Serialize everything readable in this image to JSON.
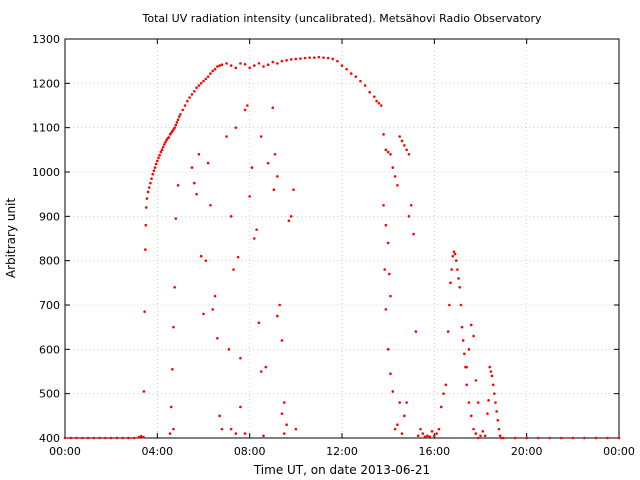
{
  "chart_data": {
    "type": "scatter",
    "title": "Total UV radiation intensity (uncalibrated). Metsähovi Radio Observatory",
    "xlabel": "Time UT, on date 2013-06-21",
    "ylabel": "Arbitrary unit",
    "xlim": [
      0,
      24
    ],
    "ylim": [
      400,
      1300
    ],
    "grid": true,
    "marker_color": "#ff0000",
    "x_ticks": [
      {
        "value": 0,
        "label": "00:00"
      },
      {
        "value": 4,
        "label": "04:00"
      },
      {
        "value": 8,
        "label": "08:00"
      },
      {
        "value": 12,
        "label": "12:00"
      },
      {
        "value": 16,
        "label": "16:00"
      },
      {
        "value": 20,
        "label": "20:00"
      },
      {
        "value": 24,
        "label": "00:00"
      }
    ],
    "y_ticks": [
      {
        "value": 400,
        "label": "400"
      },
      {
        "value": 500,
        "label": "500"
      },
      {
        "value": 600,
        "label": "600"
      },
      {
        "value": 700,
        "label": "700"
      },
      {
        "value": 800,
        "label": "800"
      },
      {
        "value": 900,
        "label": "900"
      },
      {
        "value": 1000,
        "label": "1000"
      },
      {
        "value": 1100,
        "label": "1100"
      },
      {
        "value": 1200,
        "label": "1200"
      },
      {
        "value": 1300,
        "label": "1300"
      }
    ],
    "series": [
      {
        "points": [
          [
            0.0,
            400
          ],
          [
            0.25,
            400
          ],
          [
            0.5,
            400
          ],
          [
            0.75,
            400
          ],
          [
            1.0,
            400
          ],
          [
            1.25,
            400
          ],
          [
            1.5,
            400
          ],
          [
            1.75,
            400
          ],
          [
            2.0,
            400
          ],
          [
            2.25,
            400
          ],
          [
            2.5,
            400
          ],
          [
            2.75,
            400
          ],
          [
            3.0,
            400
          ],
          [
            3.2,
            402
          ],
          [
            3.3,
            404
          ],
          [
            3.4,
            402
          ],
          [
            3.42,
            505
          ],
          [
            3.45,
            685
          ],
          [
            3.48,
            825
          ],
          [
            3.5,
            880
          ],
          [
            3.52,
            920
          ],
          [
            3.55,
            940
          ],
          [
            3.6,
            955
          ],
          [
            3.65,
            965
          ],
          [
            3.7,
            975
          ],
          [
            3.75,
            985
          ],
          [
            3.8,
            995
          ],
          [
            3.85,
            1003
          ],
          [
            3.9,
            1010
          ],
          [
            3.95,
            1018
          ],
          [
            4.0,
            1025
          ],
          [
            4.05,
            1032
          ],
          [
            4.1,
            1038
          ],
          [
            4.15,
            1045
          ],
          [
            4.2,
            1050
          ],
          [
            4.25,
            1056
          ],
          [
            4.3,
            1062
          ],
          [
            4.35,
            1067
          ],
          [
            4.4,
            1072
          ],
          [
            4.45,
            1076
          ],
          [
            4.5,
            1078
          ],
          [
            4.55,
            1085
          ],
          [
            4.6,
            1088
          ],
          [
            4.65,
            1092
          ],
          [
            4.7,
            1096
          ],
          [
            4.75,
            1100
          ],
          [
            4.8,
            1106
          ],
          [
            4.85,
            1112
          ],
          [
            4.9,
            1118
          ],
          [
            4.95,
            1125
          ],
          [
            5.0,
            1130
          ],
          [
            5.1,
            1140
          ],
          [
            5.2,
            1150
          ],
          [
            5.3,
            1160
          ],
          [
            5.4,
            1168
          ],
          [
            5.5,
            1175
          ],
          [
            5.6,
            1182
          ],
          [
            5.7,
            1190
          ],
          [
            5.8,
            1195
          ],
          [
            5.9,
            1200
          ],
          [
            6.0,
            1205
          ],
          [
            6.1,
            1210
          ],
          [
            6.2,
            1215
          ],
          [
            6.3,
            1222
          ],
          [
            6.4,
            1228
          ],
          [
            6.5,
            1232
          ],
          [
            6.6,
            1238
          ],
          [
            6.7,
            1240
          ],
          [
            6.8,
            1242
          ],
          [
            7.0,
            1245
          ],
          [
            7.2,
            1240
          ],
          [
            7.4,
            1235
          ],
          [
            7.6,
            1245
          ],
          [
            7.8,
            1243
          ],
          [
            8.0,
            1235
          ],
          [
            8.2,
            1240
          ],
          [
            8.4,
            1245
          ],
          [
            8.6,
            1238
          ],
          [
            8.8,
            1242
          ],
          [
            9.0,
            1248
          ],
          [
            9.2,
            1245
          ],
          [
            9.4,
            1250
          ],
          [
            9.6,
            1252
          ],
          [
            9.8,
            1254
          ],
          [
            10.0,
            1255
          ],
          [
            10.2,
            1256
          ],
          [
            10.4,
            1257
          ],
          [
            10.6,
            1258
          ],
          [
            10.8,
            1258
          ],
          [
            11.0,
            1259
          ],
          [
            11.2,
            1258
          ],
          [
            11.4,
            1257
          ],
          [
            11.6,
            1255
          ],
          [
            11.8,
            1250
          ],
          [
            12.0,
            1240
          ],
          [
            12.2,
            1232
          ],
          [
            12.4,
            1222
          ],
          [
            12.6,
            1215
          ],
          [
            12.8,
            1205
          ],
          [
            13.0,
            1195
          ],
          [
            13.2,
            1180
          ],
          [
            13.4,
            1170
          ],
          [
            13.5,
            1160
          ],
          [
            13.6,
            1155
          ],
          [
            4.7,
            650
          ],
          [
            4.75,
            740
          ],
          [
            4.8,
            895
          ],
          [
            4.9,
            970
          ],
          [
            4.55,
            410
          ],
          [
            4.6,
            470
          ],
          [
            4.65,
            555
          ],
          [
            4.7,
            420
          ],
          [
            5.5,
            1010
          ],
          [
            5.6,
            975
          ],
          [
            5.7,
            950
          ],
          [
            5.8,
            1040
          ],
          [
            5.9,
            810
          ],
          [
            6.0,
            680
          ],
          [
            6.1,
            800
          ],
          [
            6.2,
            1020
          ],
          [
            6.3,
            925
          ],
          [
            6.4,
            690
          ],
          [
            6.5,
            720
          ],
          [
            6.6,
            625
          ],
          [
            6.7,
            450
          ],
          [
            6.8,
            420
          ],
          [
            7.0,
            1080
          ],
          [
            7.1,
            600
          ],
          [
            7.2,
            420
          ],
          [
            7.4,
            410
          ],
          [
            7.5,
            808
          ],
          [
            7.6,
            470
          ],
          [
            7.8,
            1140
          ],
          [
            7.9,
            1150
          ],
          [
            8.0,
            945
          ],
          [
            8.2,
            850
          ],
          [
            8.3,
            870
          ],
          [
            8.4,
            660
          ],
          [
            8.5,
            550
          ],
          [
            8.6,
            405
          ],
          [
            8.7,
            560
          ],
          [
            9.0,
            1145
          ],
          [
            9.1,
            1040
          ],
          [
            9.2,
            990
          ],
          [
            9.3,
            700
          ],
          [
            9.4,
            620
          ],
          [
            9.5,
            480
          ],
          [
            9.6,
            430
          ],
          [
            9.7,
            890
          ],
          [
            9.8,
            900
          ],
          [
            9.9,
            960
          ],
          [
            10.0,
            420
          ],
          [
            7.2,
            900
          ],
          [
            7.3,
            780
          ],
          [
            7.4,
            1100
          ],
          [
            7.6,
            580
          ],
          [
            7.8,
            410
          ],
          [
            8.1,
            1010
          ],
          [
            8.5,
            1080
          ],
          [
            8.8,
            1020
          ],
          [
            9.05,
            960
          ],
          [
            9.2,
            675
          ],
          [
            9.4,
            455
          ],
          [
            9.5,
            410
          ],
          [
            13.7,
            1150
          ],
          [
            13.8,
            1085
          ],
          [
            13.9,
            1050
          ],
          [
            14.0,
            1045
          ],
          [
            14.1,
            1040
          ],
          [
            14.2,
            1010
          ],
          [
            14.3,
            990
          ],
          [
            14.4,
            970
          ],
          [
            14.5,
            1080
          ],
          [
            14.6,
            1070
          ],
          [
            14.7,
            1060
          ],
          [
            14.8,
            1050
          ],
          [
            14.9,
            1040
          ],
          [
            13.8,
            925
          ],
          [
            13.9,
            880
          ],
          [
            14.0,
            840
          ],
          [
            13.85,
            780
          ],
          [
            14.05,
            770
          ],
          [
            14.1,
            720
          ],
          [
            13.9,
            690
          ],
          [
            14.0,
            600
          ],
          [
            14.1,
            545
          ],
          [
            14.2,
            505
          ],
          [
            14.3,
            420
          ],
          [
            14.4,
            430
          ],
          [
            14.5,
            480
          ],
          [
            14.6,
            410
          ],
          [
            14.7,
            450
          ],
          [
            14.8,
            480
          ],
          [
            14.9,
            900
          ],
          [
            15.0,
            925
          ],
          [
            15.1,
            860
          ],
          [
            15.2,
            640
          ],
          [
            15.3,
            405
          ],
          [
            15.4,
            420
          ],
          [
            15.5,
            410
          ],
          [
            15.6,
            403
          ],
          [
            15.7,
            405
          ],
          [
            15.8,
            403
          ],
          [
            15.9,
            415
          ],
          [
            16.0,
            405
          ],
          [
            16.1,
            410
          ],
          [
            16.2,
            420
          ],
          [
            16.3,
            470
          ],
          [
            16.4,
            500
          ],
          [
            16.5,
            520
          ],
          [
            16.6,
            640
          ],
          [
            16.65,
            700
          ],
          [
            16.7,
            750
          ],
          [
            16.75,
            780
          ],
          [
            16.8,
            810
          ],
          [
            16.85,
            820
          ],
          [
            16.9,
            815
          ],
          [
            16.95,
            800
          ],
          [
            17.0,
            780
          ],
          [
            17.05,
            760
          ],
          [
            17.1,
            740
          ],
          [
            17.15,
            700
          ],
          [
            17.2,
            650
          ],
          [
            17.25,
            620
          ],
          [
            17.3,
            590
          ],
          [
            17.35,
            560
          ],
          [
            17.4,
            520
          ],
          [
            17.5,
            480
          ],
          [
            17.6,
            450
          ],
          [
            17.7,
            420
          ],
          [
            17.8,
            410
          ],
          [
            17.9,
            400
          ],
          [
            18.0,
            405
          ],
          [
            18.1,
            415
          ],
          [
            18.2,
            405
          ],
          [
            18.3,
            455
          ],
          [
            18.35,
            485
          ],
          [
            18.4,
            560
          ],
          [
            18.45,
            550
          ],
          [
            18.5,
            540
          ],
          [
            18.55,
            520
          ],
          [
            18.6,
            500
          ],
          [
            18.65,
            480
          ],
          [
            18.7,
            460
          ],
          [
            18.75,
            440
          ],
          [
            18.8,
            420
          ],
          [
            18.85,
            405
          ],
          [
            18.9,
            400
          ],
          [
            17.6,
            655
          ],
          [
            17.7,
            630
          ],
          [
            17.8,
            530
          ],
          [
            17.9,
            480
          ],
          [
            17.5,
            600
          ],
          [
            17.4,
            560
          ],
          [
            19.0,
            400
          ],
          [
            19.5,
            400
          ],
          [
            20.0,
            400
          ],
          [
            20.5,
            400
          ],
          [
            21.0,
            400
          ],
          [
            21.5,
            400
          ],
          [
            22.0,
            400
          ],
          [
            22.5,
            400
          ],
          [
            23.0,
            400
          ],
          [
            23.5,
            400
          ],
          [
            24.0,
            400
          ]
        ]
      }
    ]
  }
}
